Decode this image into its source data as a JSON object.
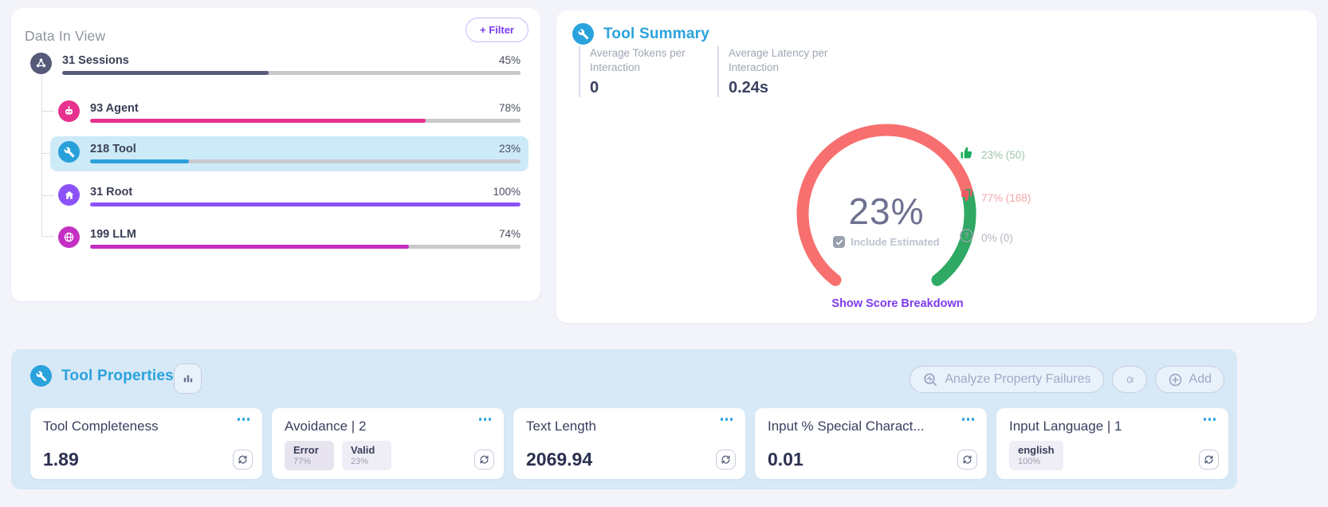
{
  "colors": {
    "accent_blue": "#2aa2dc",
    "link_purple": "#7c3aed",
    "filter_purple": "#7b3cf0",
    "selected_row_bg": "#cdeaf9",
    "panel_blue_bg": "#d7e8f7",
    "gauge_red": "#f76f6f",
    "gauge_green": "#2fa963"
  },
  "data_in_view": {
    "title": "Data In View",
    "filter_label": "+ Filter",
    "rows": [
      {
        "label": "31 Sessions",
        "pct": "45%",
        "value": 45,
        "color": "#565a78",
        "icon": "sessions-icon"
      },
      {
        "label": "93 Agent",
        "pct": "78%",
        "value": 78,
        "color": "#e8318f",
        "icon": "agent-icon"
      },
      {
        "label": "218 Tool",
        "pct": "23%",
        "value": 23,
        "color": "#29a0da",
        "icon": "wrench-icon",
        "selected": true
      },
      {
        "label": "31 Root",
        "pct": "100%",
        "value": 100,
        "color": "#8b53f7",
        "icon": "home-icon"
      },
      {
        "label": "199 LLM",
        "pct": "74%",
        "value": 74,
        "color": "#c42fc4",
        "icon": "globe-icon"
      }
    ]
  },
  "summary": {
    "title": "Tool Summary",
    "stats": [
      {
        "label": "Average Tokens per Interaction",
        "value": "0"
      },
      {
        "label": "Average Latency per Interaction",
        "value": "0.24s"
      }
    ],
    "gauge": {
      "score_label": "23%",
      "score_pct": 23,
      "red": "#f76f6f",
      "green": "#2fa963",
      "checkbox_label": "Include Estimated",
      "checked": true
    },
    "legend": [
      {
        "icon": "thumbs-up-icon",
        "text": "23% (50)",
        "text_color": "#9ec4ab",
        "icon_color": "#1fae5e"
      },
      {
        "icon": "thumbs-down-icon",
        "text": "77% (168)",
        "text_color": "#f2a7aa",
        "icon_color": "#ef5a62"
      },
      {
        "icon": "question-icon",
        "text": "0% (0)",
        "text_color": "#b2b7c1",
        "icon_color": "#9aa1ad"
      }
    ],
    "breakdown_link": "Show Score Breakdown"
  },
  "properties": {
    "title": "Tool Properties",
    "analyze_label": "Analyze Property Failures",
    "add_label": "Add",
    "cards": [
      {
        "title": "Tool Completeness",
        "value": "1.89"
      },
      {
        "title": "Avoidance | 2",
        "tags": [
          {
            "name": "Error",
            "pct": "77%"
          },
          {
            "name": "Valid",
            "pct": "23%"
          }
        ]
      },
      {
        "title": "Text Length",
        "value": "2069.94"
      },
      {
        "title": "Input % Special Charact...",
        "value": "0.01"
      },
      {
        "title": "Input Language | 1",
        "tags": [
          {
            "name": "english",
            "pct": "100%"
          }
        ]
      }
    ]
  }
}
